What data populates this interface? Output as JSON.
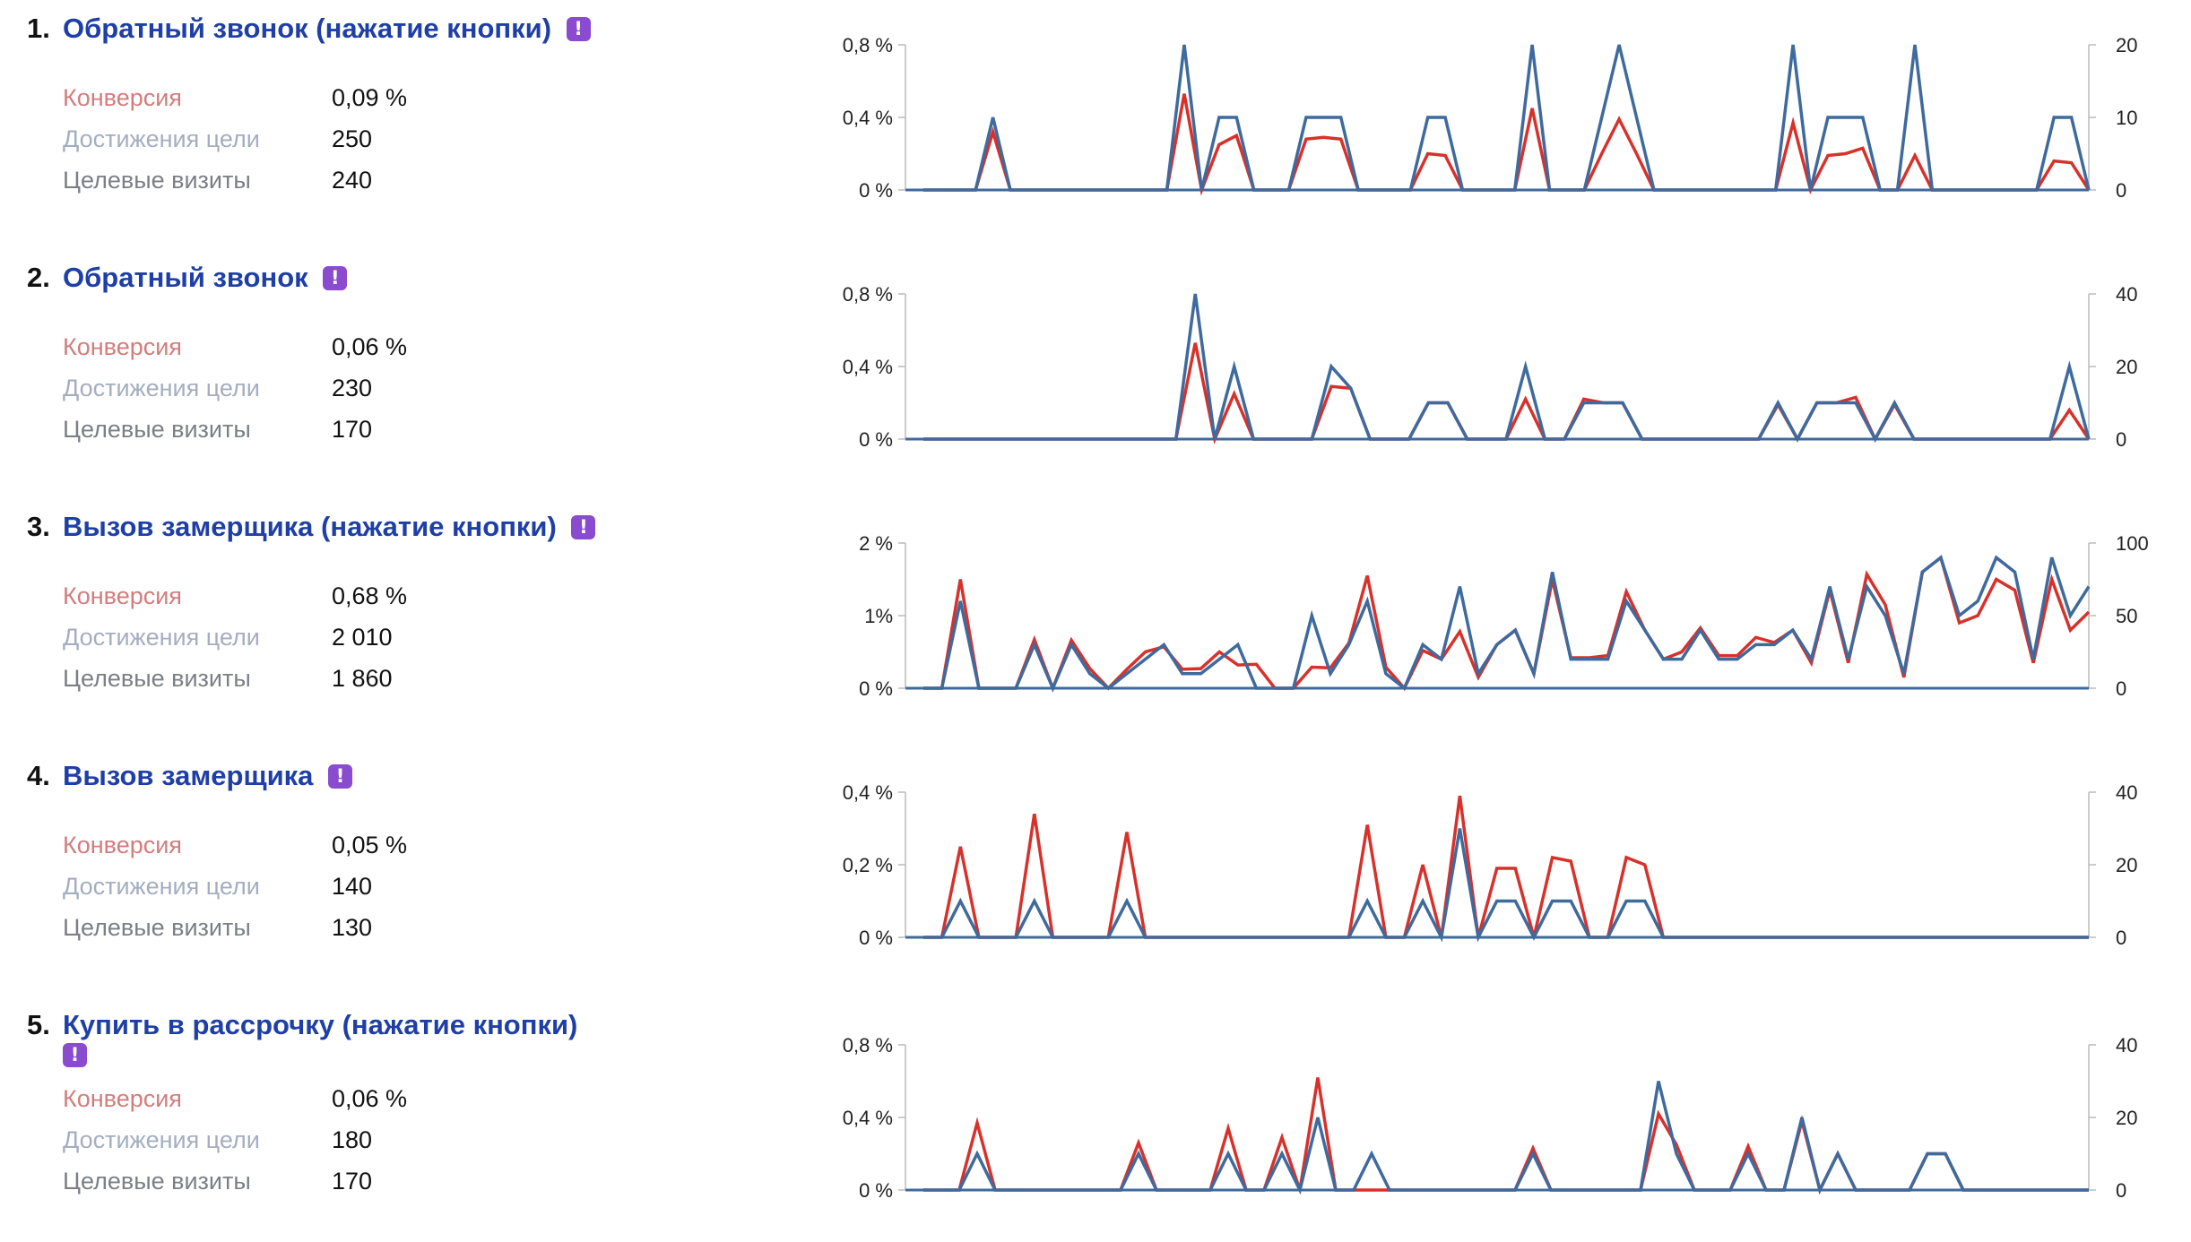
{
  "colors": {
    "title": "#1f3fa8",
    "badge": "#8a4bd0",
    "conversion_line": "#d8312b",
    "reaches_line": "#3e6a9e",
    "conversion_label": "#d47c7c",
    "reaches_label": "#a4aec0",
    "visits_label": "#7b7f86"
  },
  "icons": {
    "badge_icon": "exclamation-badge-icon"
  },
  "badge_symbol": "!",
  "metric_labels": {
    "conversion": "Конверсия",
    "reaches": "Достижения цели",
    "visits": "Целевые визиты"
  },
  "goals": [
    {
      "number": "1.",
      "title": "Обратный звонок (нажатие кнопки)",
      "conversion": "0,09 %",
      "reaches": "250",
      "visits": "240",
      "chart_data": {
        "type": "line",
        "left_axis": {
          "ticks": [
            "0 %",
            "0,4 %",
            "0,8 %"
          ],
          "max": 0.8
        },
        "right_axis": {
          "ticks": [
            "0",
            "10",
            "20"
          ],
          "max": 20
        },
        "series": [
          {
            "values": [
              0,
              0,
              0,
              0,
              0.32,
              0,
              0,
              0,
              0,
              0,
              0,
              0,
              0,
              0,
              0,
              0.53,
              0,
              0.25,
              0.3,
              0,
              0,
              0,
              0.28,
              0.29,
              0.28,
              0,
              0,
              0,
              0,
              0.2,
              0.19,
              0,
              0,
              0,
              0,
              0.45,
              0,
              0,
              0,
              0.2,
              0.39,
              0.2,
              0,
              0,
              0,
              0,
              0,
              0,
              0,
              0,
              0.37,
              0,
              0.19,
              0.2,
              0.23,
              0,
              0,
              0.19,
              0,
              0,
              0,
              0,
              0,
              0,
              0,
              0.16,
              0.15,
              0
            ]
          },
          {
            "values": [
              0,
              0,
              0,
              0,
              10,
              0,
              0,
              0,
              0,
              0,
              0,
              0,
              0,
              0,
              0,
              20,
              0,
              10,
              10,
              0,
              0,
              0,
              10,
              10,
              10,
              0,
              0,
              0,
              0,
              10,
              10,
              0,
              0,
              0,
              0,
              20,
              0,
              0,
              0,
              10,
              20,
              10,
              0,
              0,
              0,
              0,
              0,
              0,
              0,
              0,
              20,
              0,
              10,
              10,
              10,
              0,
              0,
              20,
              0,
              0,
              0,
              0,
              0,
              0,
              0,
              10,
              10,
              0
            ]
          }
        ]
      }
    },
    {
      "number": "2.",
      "title": "Обратный звонок",
      "conversion": "0,06 %",
      "reaches": "230",
      "visits": "170",
      "chart_data": {
        "type": "line",
        "left_axis": {
          "ticks": [
            "0 %",
            "0,4 %",
            "0,8 %"
          ],
          "max": 0.8
        },
        "right_axis": {
          "ticks": [
            "0",
            "20",
            "40"
          ],
          "max": 40
        },
        "series": [
          {
            "values": [
              0,
              0,
              0,
              0,
              0,
              0,
              0,
              0,
              0,
              0,
              0,
              0,
              0,
              0,
              0.53,
              0,
              0.25,
              0,
              0,
              0,
              0,
              0.29,
              0.28,
              0,
              0,
              0,
              0.2,
              0.2,
              0,
              0,
              0,
              0.22,
              0,
              0,
              0.22,
              0.2,
              0.2,
              0,
              0,
              0,
              0,
              0,
              0,
              0,
              0.19,
              0,
              0.2,
              0.2,
              0.23,
              0,
              0.19,
              0,
              0,
              0,
              0,
              0,
              0,
              0,
              0,
              0.16,
              0
            ]
          },
          {
            "values": [
              0,
              0,
              0,
              0,
              0,
              0,
              0,
              0,
              0,
              0,
              0,
              0,
              0,
              0,
              40,
              0,
              20,
              0,
              0,
              0,
              0,
              20,
              14,
              0,
              0,
              0,
              10,
              10,
              0,
              0,
              0,
              20,
              0,
              0,
              10,
              10,
              10,
              0,
              0,
              0,
              0,
              0,
              0,
              0,
              10,
              0,
              10,
              10,
              10,
              0,
              10,
              0,
              0,
              0,
              0,
              0,
              0,
              0,
              0,
              20,
              0
            ]
          }
        ]
      }
    },
    {
      "number": "3.",
      "title": "Вызов замерщика (нажатие кнопки)",
      "conversion": "0,68 %",
      "reaches": "2 010",
      "visits": "1 860",
      "chart_data": {
        "type": "line",
        "left_axis": {
          "ticks": [
            "0 %",
            "1%",
            "2 %"
          ],
          "max": 2
        },
        "right_axis": {
          "ticks": [
            "0",
            "50",
            "100"
          ],
          "max": 100
        },
        "series": [
          {
            "values": [
              0,
              0,
              1.5,
              0,
              0,
              0,
              0.67,
              0,
              0.66,
              0.27,
              0,
              0.26,
              0.5,
              0.57,
              0.26,
              0.27,
              0.5,
              0.32,
              0.33,
              0,
              0,
              0.29,
              0.28,
              0.62,
              1.55,
              0.29,
              0,
              0.52,
              0.4,
              0.78,
              0.15,
              0.6,
              0.8,
              0.2,
              1.5,
              0.42,
              0.42,
              0.45,
              1.33,
              0.8,
              0.4,
              0.5,
              0.83,
              0.45,
              0.45,
              0.7,
              0.63,
              0.8,
              0.35,
              1.35,
              0.35,
              1.57,
              1.15,
              0.15,
              1.6,
              1.8,
              0.9,
              1.0,
              1.5,
              1.35,
              0.35,
              1.5,
              0.8,
              1.05
            ]
          },
          {
            "values": [
              0,
              0,
              60,
              0,
              0,
              0,
              30,
              0,
              30,
              10,
              0,
              10,
              20,
              30,
              10,
              10,
              20,
              30,
              0,
              0,
              0,
              50,
              10,
              30,
              60,
              10,
              0,
              30,
              20,
              70,
              10,
              30,
              40,
              10,
              80,
              20,
              20,
              20,
              60,
              40,
              20,
              20,
              40,
              20,
              20,
              30,
              30,
              40,
              20,
              70,
              20,
              70,
              50,
              10,
              80,
              90,
              50,
              60,
              90,
              80,
              20,
              90,
              50,
              70
            ]
          }
        ]
      }
    },
    {
      "number": "4.",
      "title": "Вызов замерщика",
      "conversion": "0,05 %",
      "reaches": "140",
      "visits": "130",
      "chart_data": {
        "type": "line",
        "left_axis": {
          "ticks": [
            "0 %",
            "0,2 %",
            "0,4 %"
          ],
          "max": 0.4
        },
        "right_axis": {
          "ticks": [
            "0",
            "20",
            "40"
          ],
          "max": 40
        },
        "series": [
          {
            "values": [
              0,
              0,
              0.25,
              0,
              0,
              0,
              0.34,
              0,
              0,
              0,
              0,
              0.29,
              0,
              0,
              0,
              0,
              0,
              0,
              0,
              0,
              0,
              0,
              0,
              0,
              0.31,
              0,
              0,
              0.2,
              0,
              0.39,
              0,
              0.19,
              0.19,
              0,
              0.22,
              0.21,
              0,
              0,
              0.22,
              0.2,
              0,
              0,
              0,
              0,
              0,
              0,
              0,
              0,
              0,
              0,
              0,
              0,
              0,
              0,
              0,
              0,
              0,
              0,
              0,
              0,
              0,
              0,
              0,
              0
            ]
          },
          {
            "values": [
              0,
              0,
              10,
              0,
              0,
              0,
              10,
              0,
              0,
              0,
              0,
              10,
              0,
              0,
              0,
              0,
              0,
              0,
              0,
              0,
              0,
              0,
              0,
              0,
              10,
              0,
              0,
              10,
              0,
              30,
              0,
              10,
              10,
              0,
              10,
              10,
              0,
              0,
              10,
              10,
              0,
              0,
              0,
              0,
              0,
              0,
              0,
              0,
              0,
              0,
              0,
              0,
              0,
              0,
              0,
              0,
              0,
              0,
              0,
              0,
              0,
              0,
              0,
              0
            ]
          }
        ]
      }
    },
    {
      "number": "5.",
      "title": "Купить в рассрочку (нажатие кнопки)",
      "conversion": "0,06 %",
      "reaches": "180",
      "visits": "170",
      "chart_data": {
        "type": "line",
        "left_axis": {
          "ticks": [
            "0 %",
            "0,4 %",
            "0,8 %"
          ],
          "max": 0.8
        },
        "right_axis": {
          "ticks": [
            "0",
            "20",
            "40"
          ],
          "max": 40
        },
        "series": [
          {
            "values": [
              0,
              0,
              0,
              0.37,
              0,
              0,
              0,
              0,
              0,
              0,
              0,
              0,
              0.26,
              0,
              0,
              0,
              0,
              0.34,
              0,
              0,
              0.29,
              0,
              0.62,
              0,
              0,
              0,
              0,
              0,
              0,
              0,
              0,
              0,
              0,
              0,
              0.23,
              0,
              0,
              0,
              0,
              0,
              0,
              0.42,
              0.25,
              0,
              0,
              0,
              0.24,
              0,
              0,
              0.38,
              0,
              0.2,
              0,
              0,
              0,
              0,
              0.2,
              0.2,
              0,
              0,
              0,
              0,
              0,
              0,
              0,
              0
            ]
          },
          {
            "values": [
              0,
              0,
              0,
              10,
              0,
              0,
              0,
              0,
              0,
              0,
              0,
              0,
              10,
              0,
              0,
              0,
              0,
              10,
              0,
              0,
              10,
              0,
              20,
              0,
              0,
              10,
              0,
              0,
              0,
              0,
              0,
              0,
              0,
              0,
              10,
              0,
              0,
              0,
              0,
              0,
              0,
              30,
              10,
              0,
              0,
              0,
              10,
              0,
              0,
              20,
              0,
              10,
              0,
              0,
              0,
              0,
              10,
              10,
              0,
              0,
              0,
              0,
              0,
              0,
              0,
              0
            ]
          }
        ]
      }
    }
  ]
}
